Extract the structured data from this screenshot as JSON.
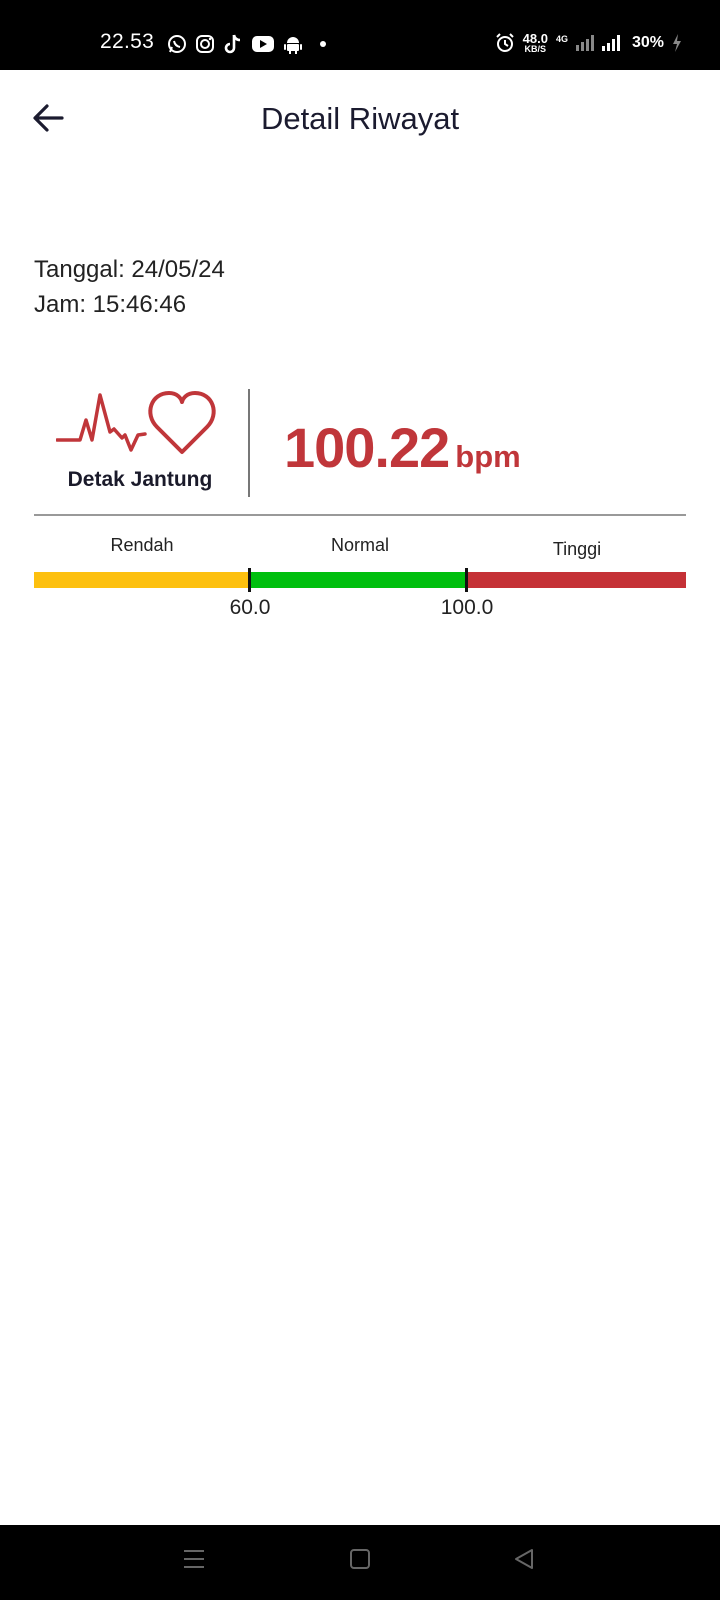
{
  "status_bar": {
    "time": "22.53",
    "app_icons": [
      "whatsapp-icon",
      "instagram-icon",
      "tiktok-icon",
      "youtube-icon",
      "android-icon",
      "dot-icon"
    ],
    "alarm_icon": "alarm-icon",
    "net_speed_value": "48.0",
    "net_speed_unit": "KB/S",
    "network_type": "4G",
    "battery": "30%"
  },
  "app_bar": {
    "back_icon": "arrow-left-icon",
    "title": "Detail Riwayat"
  },
  "record": {
    "date_text": "Tanggal: 24/05/24",
    "time_text": "Jam: 15:46:46"
  },
  "heart_rate": {
    "icon": "heartbeat-icon",
    "label": "Detak Jantung",
    "value": "100.22",
    "unit": "bpm",
    "value_color": "#c0363a"
  },
  "scale": {
    "ranges": [
      {
        "label": "Rendah",
        "color": "#fdc00f"
      },
      {
        "label": "Normal",
        "color": "#00bf0e"
      },
      {
        "label": "Tinggi",
        "color": "#c53136"
      }
    ],
    "thresholds": [
      "60.0",
      "100.0"
    ]
  },
  "nav_bar": {
    "menu_icon": "menu-icon",
    "home_icon": "home-square-icon",
    "back_icon": "back-triangle-icon"
  }
}
